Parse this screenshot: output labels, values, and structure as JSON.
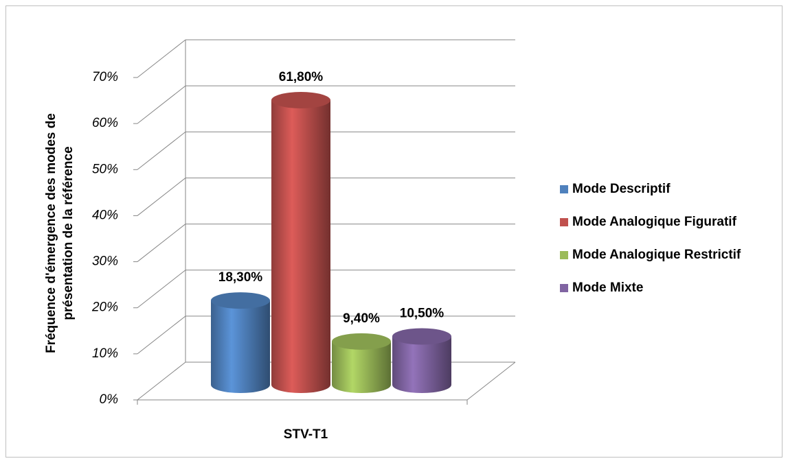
{
  "chart_data": {
    "type": "bar3d",
    "ylabel": [
      "Fréquence d'émergence des modes de",
      "présentation de la référence"
    ],
    "categories": [
      "STV-T1"
    ],
    "series": [
      {
        "name": "Mode Descriptif",
        "color": "#4f81bd",
        "values": [
          18.3
        ],
        "value_labels": [
          "18,30%"
        ]
      },
      {
        "name": "Mode Analogique Figuratif",
        "color": "#c0504d",
        "values": [
          61.8
        ],
        "value_labels": [
          "61,80%"
        ]
      },
      {
        "name": "Mode Analogique Restrictif",
        "color": "#9bbb59",
        "values": [
          9.4
        ],
        "value_labels": [
          "9,40%"
        ]
      },
      {
        "name": "Mode Mixte",
        "color": "#8064a2",
        "values": [
          10.5
        ],
        "value_labels": [
          "10,50%"
        ]
      }
    ],
    "ylim": [
      0,
      70
    ],
    "yticks": [
      {
        "value": 0,
        "label": "0%"
      },
      {
        "value": 10,
        "label": "10%"
      },
      {
        "value": 20,
        "label": "20%"
      },
      {
        "value": 30,
        "label": "30%"
      },
      {
        "value": 40,
        "label": "40%"
      },
      {
        "value": 50,
        "label": "50%"
      },
      {
        "value": 60,
        "label": "60%"
      },
      {
        "value": 70,
        "label": "70%"
      }
    ],
    "grid": true,
    "legend": "right"
  }
}
